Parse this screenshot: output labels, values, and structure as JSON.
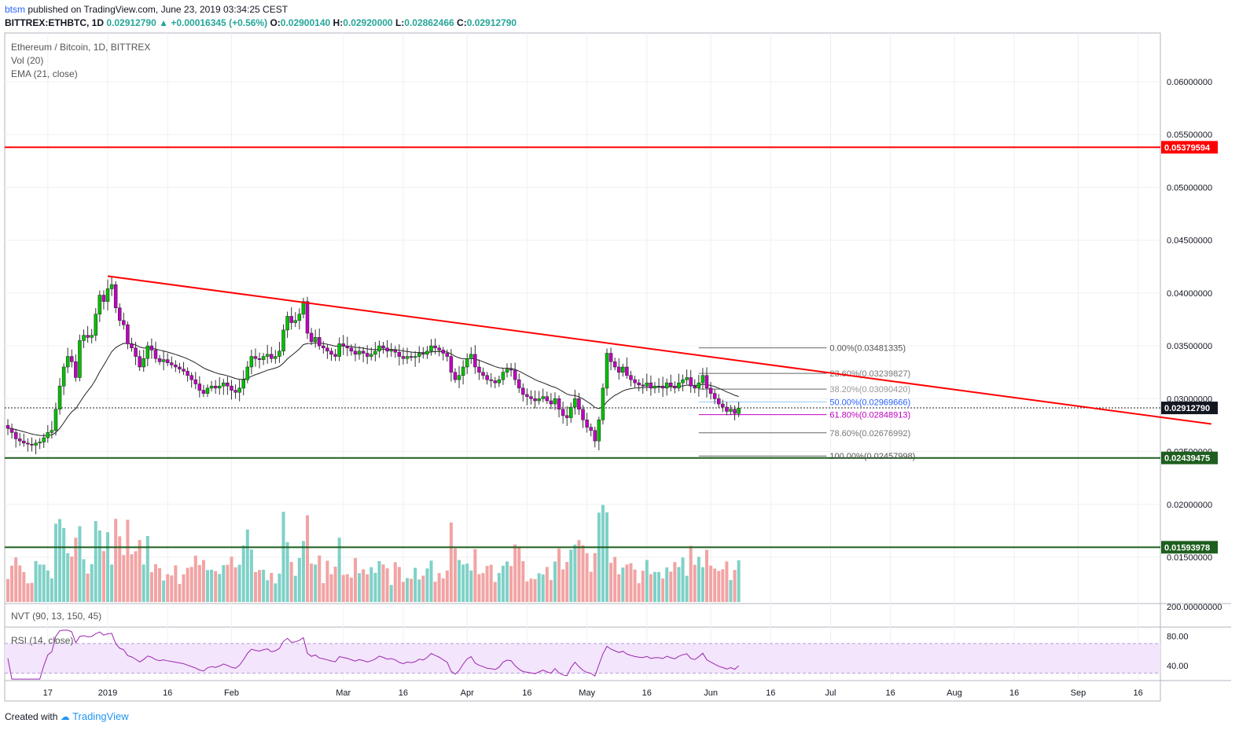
{
  "header": {
    "user": "btsm",
    "published_text": "published on TradingView.com, June 23, 2019 03:34:25 CEST",
    "symbol": "BITTREX:ETHBTC, 1D",
    "last": "0.02912790",
    "change": "+0.00016345 (+0.56%)",
    "o_label": "O:",
    "o": "0.02900140",
    "h_label": "H:",
    "h": "0.02920000",
    "l_label": "L:",
    "l": "0.02862466",
    "c_label": "C:",
    "c": "0.02912790"
  },
  "legend": {
    "title": "Ethereum / Bitcoin, 1D, BITTREX",
    "vol": "Vol (20)",
    "ema": "EMA (21, close)",
    "nvt": "NVT (90, 13, 150, 45)",
    "rsi": "RSI (14, close)"
  },
  "footer": {
    "created_with": "Created with",
    "brand": "TradingView"
  },
  "colors": {
    "up": "#00c000",
    "down": "#c000c0",
    "trend": "#ff0000",
    "support": "#1e5e1e",
    "vol_up": "#7fd1c7",
    "vol_down": "#f2a3a3",
    "rsi_line": "#9c27b0",
    "rsi_band": "#f3e5fb"
  },
  "chart_data": {
    "type": "candlestick",
    "price_axis": {
      "ticks": [
        "0.06000000",
        "0.05500000",
        "0.05000000",
        "0.04500000",
        "0.04000000",
        "0.03500000",
        "0.03000000",
        "0.02500000",
        "0.02000000",
        "0.01500000"
      ],
      "range": [
        0.012,
        0.064
      ]
    },
    "x_axis": {
      "ticks": [
        "17",
        "2019",
        "16",
        "Feb",
        "Mar",
        "16",
        "Apr",
        "16",
        "May",
        "16",
        "Jun",
        "16",
        "Jul",
        "16",
        "Aug",
        "16",
        "Sep",
        "16"
      ]
    },
    "last_price_label": "0.02912790",
    "horizontal_levels": [
      {
        "value": 0.05379594,
        "label": "0.05379594",
        "color": "#ff0000"
      },
      {
        "value": 0.02439475,
        "label": "0.02439475",
        "color": "#1e5e1e"
      },
      {
        "value": 0.01593978,
        "label": "0.01593978",
        "color": "#1e5e1e"
      }
    ],
    "trendline": {
      "from": [
        "2019-01-01",
        0.0416
      ],
      "to": [
        "2019-09-30",
        0.0285
      ],
      "color": "#ff0000"
    },
    "fibonacci": [
      {
        "label": "0.00%(0.03481335)",
        "value": 0.03481335
      },
      {
        "label": "23.60%(0.03239827)",
        "value": 0.03239827
      },
      {
        "label": "38.20%(0.03090420)",
        "value": 0.0309042
      },
      {
        "label": "50.00%(0.02969666)",
        "value": 0.02969666
      },
      {
        "label": "61.80%(0.02848913)",
        "value": 0.02848913
      },
      {
        "label": "78.60%(0.02676992)",
        "value": 0.02676992
      },
      {
        "label": "100.00%(0.02457998)",
        "value": 0.02457998
      }
    ],
    "close_series_approx": {
      "start": "2018-12-07",
      "values": [
        0.0272,
        0.0268,
        0.0262,
        0.026,
        0.0258,
        0.0257,
        0.0256,
        0.0258,
        0.0259,
        0.0263,
        0.0268,
        0.027,
        0.029,
        0.0312,
        0.033,
        0.034,
        0.0335,
        0.032,
        0.0355,
        0.036,
        0.0358,
        0.036,
        0.038,
        0.0398,
        0.0392,
        0.0404,
        0.0408,
        0.0386,
        0.0374,
        0.037,
        0.0352,
        0.0348,
        0.034,
        0.033,
        0.0338,
        0.035,
        0.0346,
        0.0338,
        0.0335,
        0.0337,
        0.0334,
        0.0332,
        0.033,
        0.0328,
        0.0326,
        0.0322,
        0.0318,
        0.0314,
        0.0308,
        0.0305,
        0.031,
        0.0312,
        0.031,
        0.0312,
        0.0315,
        0.0312,
        0.0308,
        0.0306,
        0.031,
        0.0318,
        0.033,
        0.034,
        0.0338,
        0.0337,
        0.034,
        0.0342,
        0.0338,
        0.034,
        0.0345,
        0.0365,
        0.0378,
        0.0372,
        0.0374,
        0.038,
        0.0392,
        0.0362,
        0.0354,
        0.0358,
        0.035,
        0.0348,
        0.0345,
        0.0342,
        0.034,
        0.0352,
        0.035,
        0.0348,
        0.0345,
        0.0342,
        0.0345,
        0.0343,
        0.034,
        0.0342,
        0.0345,
        0.035,
        0.0348,
        0.0345,
        0.0346,
        0.0344,
        0.034,
        0.0338,
        0.034,
        0.0339,
        0.034,
        0.0343,
        0.0342,
        0.0345,
        0.035,
        0.0348,
        0.0346,
        0.0343,
        0.034,
        0.0325,
        0.0318,
        0.0322,
        0.033,
        0.0338,
        0.0342,
        0.033,
        0.0325,
        0.0322,
        0.0318,
        0.0317,
        0.0315,
        0.0318,
        0.0325,
        0.0328,
        0.0327,
        0.0318,
        0.031,
        0.0304,
        0.0302,
        0.03,
        0.0298,
        0.03,
        0.0302,
        0.0298,
        0.0295,
        0.03,
        0.029,
        0.0284,
        0.0282,
        0.0292,
        0.03,
        0.029,
        0.028,
        0.0273,
        0.027,
        0.026,
        0.028,
        0.031,
        0.0343,
        0.0335,
        0.033,
        0.0325,
        0.033,
        0.0322,
        0.0318,
        0.0315,
        0.0313,
        0.0312,
        0.0315,
        0.031,
        0.0312,
        0.0312,
        0.031,
        0.0315,
        0.0312,
        0.031,
        0.0315,
        0.0318,
        0.032,
        0.0312,
        0.031,
        0.0315,
        0.0322,
        0.031,
        0.0305,
        0.03,
        0.0295,
        0.0292,
        0.0288,
        0.029,
        0.0286,
        0.0291
      ]
    },
    "volume_note": "volume bars, green when close >= open, red when close < open",
    "nvt_panel": {
      "ticks": [
        "200.00000000"
      ]
    },
    "rsi_panel": {
      "ticks": [
        "80.00",
        "40.00"
      ],
      "band": [
        30,
        70
      ]
    }
  }
}
